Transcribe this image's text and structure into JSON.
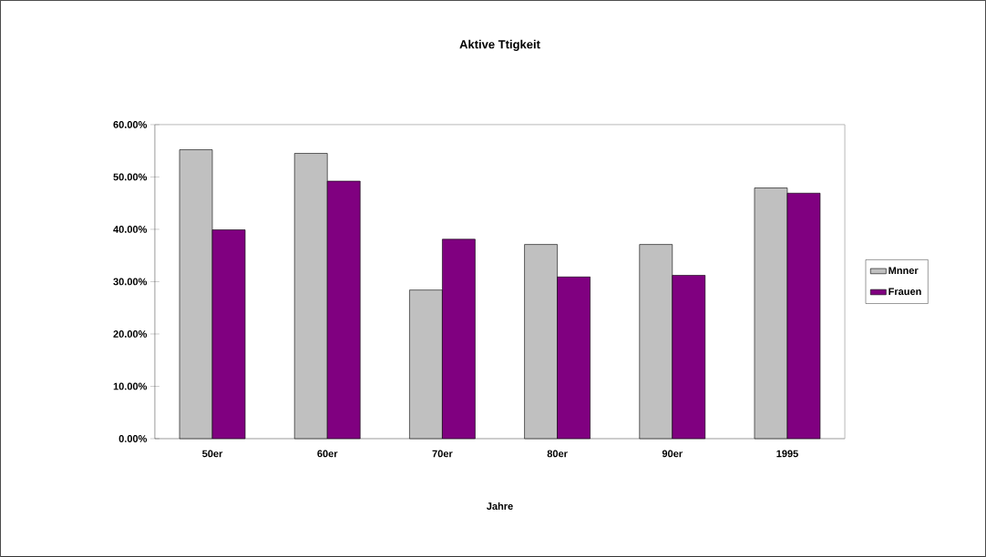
{
  "chart_data": {
    "type": "bar",
    "title": "Aktive Ttigkeit",
    "xlabel": "Jahre",
    "categories": [
      "50er",
      "60er",
      "70er",
      "80er",
      "90er",
      "1995"
    ],
    "series": [
      {
        "name": "Mnner",
        "color": "#c0c0c0",
        "values": [
          55.2,
          54.5,
          28.4,
          37.1,
          37.1,
          47.9
        ]
      },
      {
        "name": "Frauen",
        "color": "#800080",
        "values": [
          39.9,
          49.2,
          38.1,
          30.9,
          31.2,
          46.9
        ]
      }
    ],
    "ylim": [
      0,
      60
    ],
    "yticks": [
      {
        "value": 0,
        "label": "0.00%"
      },
      {
        "value": 10,
        "label": "10.00%"
      },
      {
        "value": 20,
        "label": "20.00%"
      },
      {
        "value": 30,
        "label": "30.00%"
      },
      {
        "value": 40,
        "label": "40.00%"
      },
      {
        "value": 50,
        "label": "50.00%"
      },
      {
        "value": 60,
        "label": "60.00%"
      }
    ],
    "legend": "right"
  }
}
